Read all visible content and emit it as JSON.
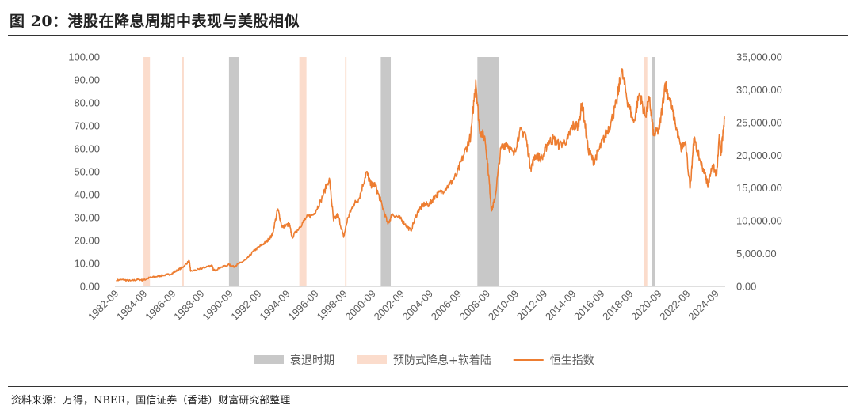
{
  "figure": {
    "title": "图 20：港股在降息周期中表现与美股相似",
    "source": "资料来源：万得，NBER，国信证券（香港）财富研究部整理"
  },
  "chart_data": {
    "type": "line",
    "title": "图 20：港股在降息周期中表现与美股相似",
    "x_ticks": [
      "1982-09",
      "1984-09",
      "1986-09",
      "1988-09",
      "1990-09",
      "1992-09",
      "1994-09",
      "1996-09",
      "1998-09",
      "2000-09",
      "2002-09",
      "2004-09",
      "2006-09",
      "2008-09",
      "2010-09",
      "2012-09",
      "2014-09",
      "2016-09",
      "2018-09",
      "2020-09",
      "2022-09",
      "2024-09"
    ],
    "x_range": [
      1982.6,
      2025.3
    ],
    "y_left": {
      "range": [
        0,
        100
      ],
      "ticks": [
        "0.00",
        "10.00",
        "20.00",
        "30.00",
        "40.00",
        "50.00",
        "60.00",
        "70.00",
        "80.00",
        "90.00",
        "100.00"
      ]
    },
    "y_right": {
      "range": [
        0,
        35000
      ],
      "ticks": [
        "0.00",
        "5,000.00",
        "10,000.00",
        "15,000.00",
        "20,000.00",
        "25,000.00",
        "30,000.00",
        "35,000.00"
      ]
    },
    "legend": [
      {
        "name": "衰退时期",
        "color": "#c8c8c8",
        "kind": "box"
      },
      {
        "name": "预防式降息+软着陆",
        "color": "#fbdccc",
        "kind": "box"
      },
      {
        "name": "恒生指数",
        "color": "#ed7d31",
        "kind": "line"
      }
    ],
    "recession_periods": [
      [
        1990.58,
        1991.25
      ],
      [
        2001.2,
        2001.9
      ],
      [
        2007.96,
        2009.46
      ],
      [
        2020.15,
        2020.4
      ]
    ],
    "soft_landing_periods": [
      [
        1984.6,
        1985.05
      ],
      [
        1987.3,
        1987.42
      ],
      [
        1995.5,
        1996.0
      ],
      [
        1998.7,
        1998.8
      ],
      [
        2019.6,
        2019.85
      ]
    ],
    "series": [
      {
        "name": "恒生指数",
        "color": "#ed7d31",
        "axis": "right",
        "points": [
          [
            1982.7,
            950
          ],
          [
            1983.2,
            1000
          ],
          [
            1983.7,
            850
          ],
          [
            1984.2,
            1050
          ],
          [
            1984.6,
            950
          ],
          [
            1985.0,
            1300
          ],
          [
            1985.5,
            1500
          ],
          [
            1986.0,
            1700
          ],
          [
            1986.5,
            1850
          ],
          [
            1987.0,
            2500
          ],
          [
            1987.4,
            3000
          ],
          [
            1987.8,
            3900
          ],
          [
            1987.9,
            2300
          ],
          [
            1988.5,
            2600
          ],
          [
            1989.0,
            3000
          ],
          [
            1989.4,
            3200
          ],
          [
            1989.5,
            2400
          ],
          [
            1990.0,
            2900
          ],
          [
            1990.6,
            3300
          ],
          [
            1990.9,
            3000
          ],
          [
            1991.3,
            3500
          ],
          [
            1991.8,
            4100
          ],
          [
            1992.3,
            5400
          ],
          [
            1992.8,
            6200
          ],
          [
            1993.2,
            6800
          ],
          [
            1993.6,
            7800
          ],
          [
            1994.0,
            11800
          ],
          [
            1994.3,
            9000
          ],
          [
            1994.8,
            9500
          ],
          [
            1995.0,
            7500
          ],
          [
            1995.5,
            9000
          ],
          [
            1996.0,
            10500
          ],
          [
            1996.5,
            11000
          ],
          [
            1997.0,
            13000
          ],
          [
            1997.6,
            16500
          ],
          [
            1997.9,
            10000
          ],
          [
            1998.2,
            11000
          ],
          [
            1998.6,
            7500
          ],
          [
            1998.9,
            10500
          ],
          [
            1999.3,
            12500
          ],
          [
            1999.7,
            13500
          ],
          [
            2000.2,
            17500
          ],
          [
            2000.5,
            15500
          ],
          [
            2000.8,
            15500
          ],
          [
            2001.2,
            13000
          ],
          [
            2001.7,
            9500
          ],
          [
            2002.0,
            11000
          ],
          [
            2002.5,
            10500
          ],
          [
            2002.9,
            9500
          ],
          [
            2003.3,
            8500
          ],
          [
            2003.8,
            11500
          ],
          [
            2004.2,
            12500
          ],
          [
            2004.6,
            12500
          ],
          [
            2005.0,
            13800
          ],
          [
            2005.5,
            14500
          ],
          [
            2006.0,
            15500
          ],
          [
            2006.5,
            17000
          ],
          [
            2007.0,
            20000
          ],
          [
            2007.5,
            23000
          ],
          [
            2007.85,
            31500
          ],
          [
            2008.1,
            24000
          ],
          [
            2008.5,
            22500
          ],
          [
            2008.75,
            17000
          ],
          [
            2008.95,
            11500
          ],
          [
            2009.2,
            13500
          ],
          [
            2009.6,
            21000
          ],
          [
            2010.0,
            22000
          ],
          [
            2010.5,
            20000
          ],
          [
            2010.9,
            23500
          ],
          [
            2011.3,
            23500
          ],
          [
            2011.7,
            18000
          ],
          [
            2012.0,
            20000
          ],
          [
            2012.5,
            19500
          ],
          [
            2012.9,
            22000
          ],
          [
            2013.3,
            22500
          ],
          [
            2013.7,
            21500
          ],
          [
            2014.3,
            22500
          ],
          [
            2014.6,
            24500
          ],
          [
            2015.0,
            24500
          ],
          [
            2015.3,
            28000
          ],
          [
            2015.7,
            21000
          ],
          [
            2016.1,
            19000
          ],
          [
            2016.5,
            21000
          ],
          [
            2016.9,
            23000
          ],
          [
            2017.3,
            25000
          ],
          [
            2017.7,
            28000
          ],
          [
            2018.05,
            33000
          ],
          [
            2018.5,
            28000
          ],
          [
            2018.9,
            25000
          ],
          [
            2019.3,
            29500
          ],
          [
            2019.7,
            26000
          ],
          [
            2020.0,
            28500
          ],
          [
            2020.3,
            23000
          ],
          [
            2020.7,
            24000
          ],
          [
            2021.1,
            31000
          ],
          [
            2021.4,
            28500
          ],
          [
            2021.8,
            25000
          ],
          [
            2022.2,
            21000
          ],
          [
            2022.5,
            22000
          ],
          [
            2022.85,
            15000
          ],
          [
            2023.1,
            22500
          ],
          [
            2023.5,
            19500
          ],
          [
            2023.9,
            17000
          ],
          [
            2024.1,
            15500
          ],
          [
            2024.4,
            18500
          ],
          [
            2024.7,
            17000
          ],
          [
            2024.9,
            23000
          ],
          [
            2025.0,
            20000
          ],
          [
            2025.25,
            25500
          ]
        ]
      }
    ]
  }
}
